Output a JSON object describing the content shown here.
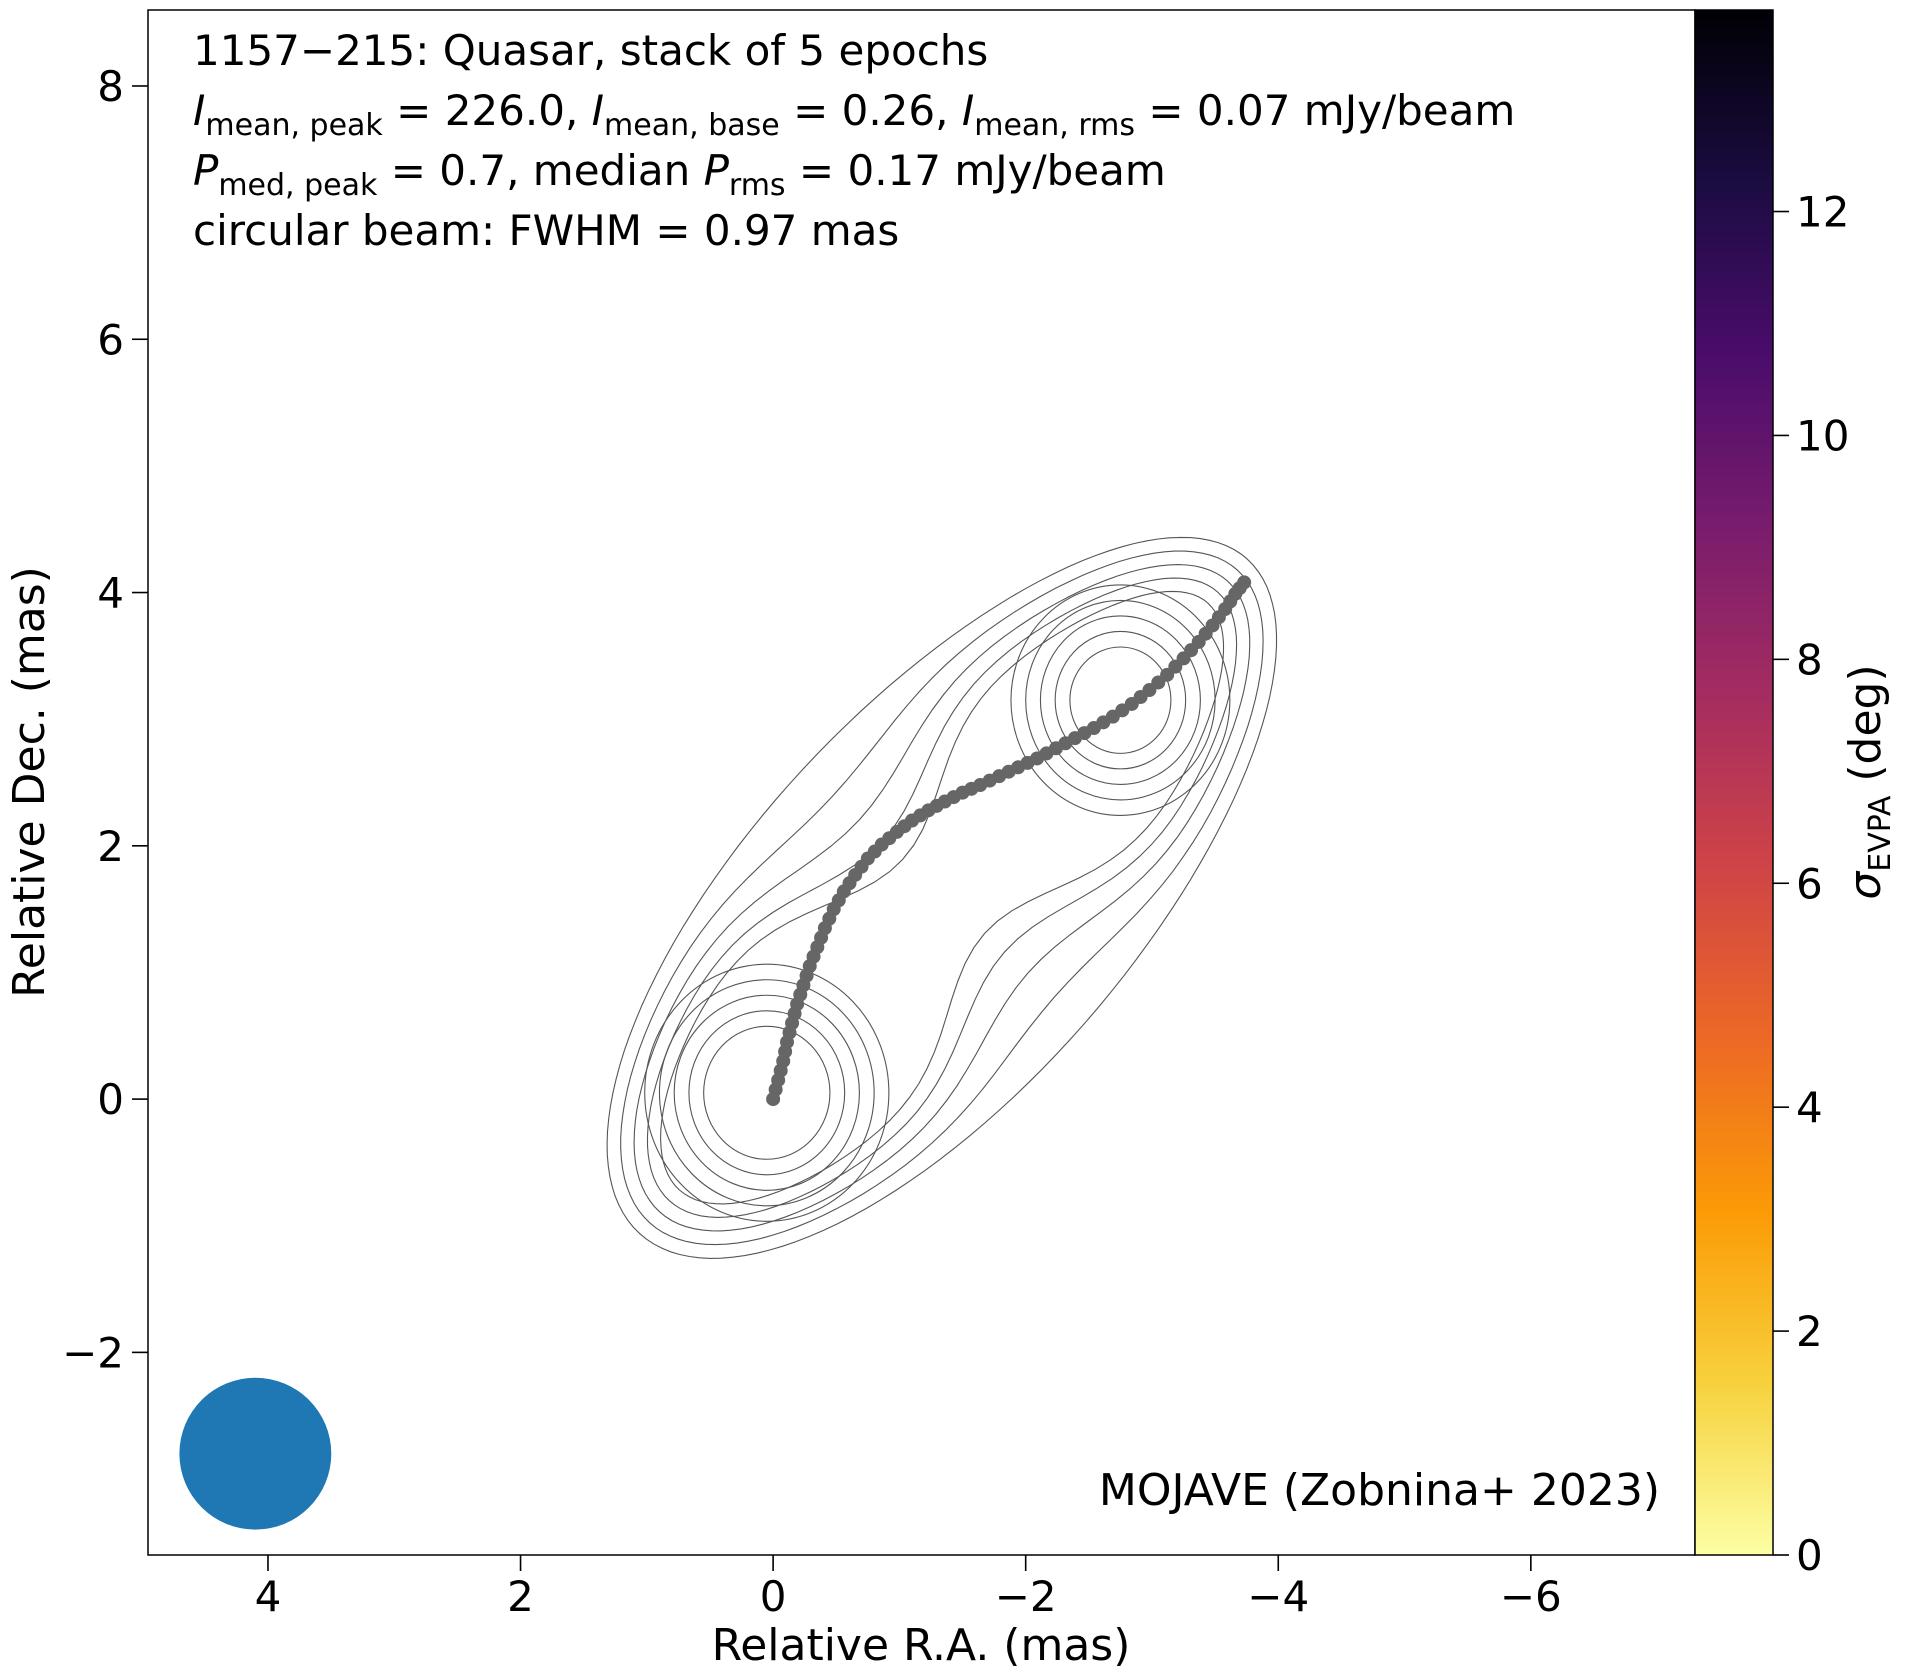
{
  "chart_data": {
    "type": "scatter",
    "title_lines": [
      {
        "parts": [
          {
            "t": "1157−215: Quasar, stack of 5 epochs"
          }
        ]
      },
      {
        "parts": [
          {
            "t": "I",
            "it": true
          },
          {
            "t": "mean, peak",
            "sub": true
          },
          {
            "t": " = 226.0, "
          },
          {
            "t": "I",
            "it": true
          },
          {
            "t": "mean, base",
            "sub": true
          },
          {
            "t": " = 0.26, "
          },
          {
            "t": "I",
            "it": true
          },
          {
            "t": "mean, rms",
            "sub": true
          },
          {
            "t": " = 0.07 mJy/beam"
          }
        ]
      },
      {
        "parts": [
          {
            "t": "P",
            "it": true
          },
          {
            "t": "med, peak",
            "sub": true
          },
          {
            "t": " = 0.7, median "
          },
          {
            "t": "P",
            "it": true
          },
          {
            "t": "rms",
            "sub": true
          },
          {
            "t": " = 0.17 mJy/beam"
          }
        ]
      },
      {
        "parts": [
          {
            "t": "circular beam: FWHM = 0.97 mas"
          }
        ]
      }
    ],
    "credit": "MOJAVE (Zobnina+ 2023)",
    "xlabel": "Relative R.A. (mas)",
    "ylabel": "Relative Dec. (mas)",
    "xlim": [
      4.95,
      -7.3
    ],
    "ylim": [
      -3.6,
      8.6
    ],
    "xticks": [
      4,
      2,
      0,
      -2,
      -4,
      -6
    ],
    "yticks": [
      -2,
      0,
      2,
      4,
      6,
      8
    ],
    "colorbar": {
      "label_parts": [
        {
          "t": "σ",
          "it": true
        },
        {
          "t": "EVPA",
          "sub": true
        },
        {
          "t": " (deg)"
        }
      ],
      "range": [
        0,
        13.8
      ],
      "ticks": [
        0,
        2,
        4,
        6,
        8,
        10,
        12
      ],
      "colormap": "inferno_r",
      "colors": [
        "#fcffa4",
        "#f7d13d",
        "#fb9b06",
        "#ed6925",
        "#cf4446",
        "#a52c60",
        "#781c6d",
        "#4a0c6b",
        "#1b0c41",
        "#000004"
      ]
    },
    "beam": {
      "x": 4.1,
      "y": -2.8,
      "fwhm": 0.97,
      "color": "#1f77b4"
    },
    "ridge_line": {
      "color": "#666666",
      "x": [
        0.0,
        -0.04,
        -0.08,
        -0.11,
        -0.15,
        -0.19,
        -0.24,
        -0.29,
        -0.35,
        -0.41,
        -0.48,
        -0.56,
        -0.65,
        -0.75,
        -0.86,
        -0.98,
        -1.1,
        -1.23,
        -1.36,
        -1.5,
        -1.64,
        -1.79,
        -1.94,
        -2.09,
        -2.24,
        -2.39,
        -2.54,
        -2.69,
        -2.84,
        -2.98,
        -3.12,
        -3.25,
        -3.37,
        -3.48,
        -3.58,
        -3.66,
        -3.73
      ],
      "y": [
        0.0,
        0.15,
        0.3,
        0.45,
        0.6,
        0.75,
        0.9,
        1.05,
        1.2,
        1.35,
        1.5,
        1.64,
        1.77,
        1.9,
        2.01,
        2.11,
        2.2,
        2.28,
        2.35,
        2.42,
        2.48,
        2.55,
        2.62,
        2.69,
        2.77,
        2.85,
        2.93,
        3.02,
        3.12,
        3.23,
        3.35,
        3.48,
        3.61,
        3.74,
        3.87,
        3.99,
        4.08
      ]
    },
    "contours": {
      "color": "#555555",
      "core": {
        "x": 0.05,
        "y": 0.05
      },
      "jet_peak": {
        "x": -2.75,
        "y": 3.15
      },
      "levels": 10
    }
  }
}
